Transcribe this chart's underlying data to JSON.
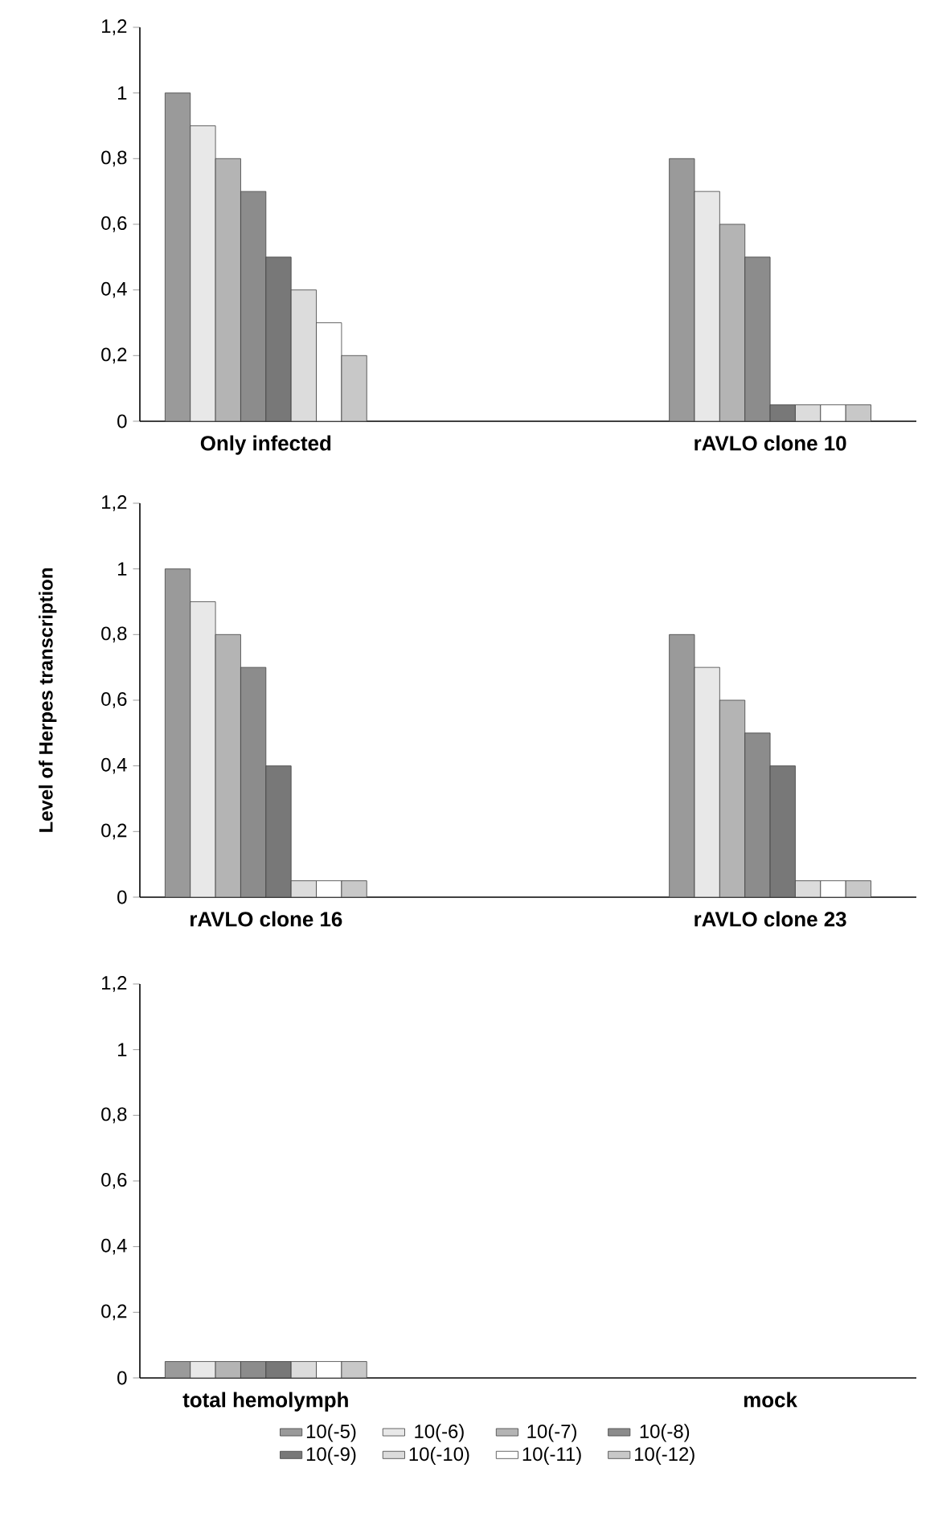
{
  "chart_data": [
    {
      "type": "bar",
      "categories": [
        "Only infected",
        "rAVLO clone 10"
      ],
      "ylim": [
        0,
        1.2
      ],
      "yticks": [
        0,
        {
          "value": 0.2,
          "label": "0,2"
        },
        {
          "value": 0.4,
          "label": "0,4"
        },
        {
          "value": 0.6,
          "label": "0,6"
        },
        {
          "value": 0.8,
          "label": "0,8"
        },
        1,
        {
          "value": 1.2,
          "label": "1,2"
        }
      ],
      "series": [
        {
          "color": "#9a9a9a",
          "values": [
            1,
            0.8
          ]
        },
        {
          "color": "#e8e8e8",
          "values": [
            0.9,
            0.7
          ]
        },
        {
          "color": "#b4b4b4",
          "values": [
            0.8,
            0.6
          ]
        },
        {
          "color": "#8c8c8c",
          "values": [
            0.7,
            0.5
          ]
        },
        {
          "color": "#787878",
          "values": [
            0.5,
            0.05
          ]
        },
        {
          "color": "#dcdcdc",
          "values": [
            0.4,
            0.05
          ]
        },
        {
          "color": "#ffffff",
          "values": [
            0.3,
            0.05
          ]
        },
        {
          "color": "#c8c8c8",
          "values": [
            0.2,
            0.05
          ]
        }
      ]
    },
    {
      "type": "bar",
      "ylabel": "Level of Herpes transcription",
      "categories": [
        "rAVLO clone 16",
        "rAVLO clone 23"
      ],
      "ylim": [
        0,
        1.2
      ],
      "yticks": [
        0,
        {
          "value": 0.2,
          "label": "0,2"
        },
        {
          "value": 0.4,
          "label": "0,4"
        },
        {
          "value": 0.6,
          "label": "0,6"
        },
        {
          "value": 0.8,
          "label": "0,8"
        },
        1,
        {
          "value": 1.2,
          "label": "1,2"
        }
      ],
      "series": [
        {
          "color": "#9a9a9a",
          "values": [
            1,
            0.8
          ]
        },
        {
          "color": "#e8e8e8",
          "values": [
            0.9,
            0.7
          ]
        },
        {
          "color": "#b4b4b4",
          "values": [
            0.8,
            0.6
          ]
        },
        {
          "color": "#8c8c8c",
          "values": [
            0.7,
            0.5
          ]
        },
        {
          "color": "#787878",
          "values": [
            0.4,
            0.4
          ]
        },
        {
          "color": "#dcdcdc",
          "values": [
            0.05,
            0.05
          ]
        },
        {
          "color": "#ffffff",
          "values": [
            0.05,
            0.05
          ]
        },
        {
          "color": "#c8c8c8",
          "values": [
            0.05,
            0.05
          ]
        }
      ]
    },
    {
      "type": "bar",
      "categories": [
        "total hemolymph",
        "mock"
      ],
      "ylim": [
        0,
        1.2
      ],
      "yticks": [
        0,
        {
          "value": 0.2,
          "label": "0,2"
        },
        {
          "value": 0.4,
          "label": "0,4"
        },
        {
          "value": 0.6,
          "label": "0,6"
        },
        {
          "value": 0.8,
          "label": "0,8"
        },
        1,
        {
          "value": 1.2,
          "label": "1,2"
        }
      ],
      "legend": "bottom",
      "series": [
        {
          "name": "10(-5)",
          "color": "#9a9a9a",
          "values": [
            0.05,
            null
          ]
        },
        {
          "name": "10(-6)",
          "color": "#e8e8e8",
          "values": [
            0.05,
            null
          ]
        },
        {
          "name": "10(-7)",
          "color": "#b4b4b4",
          "values": [
            0.05,
            null
          ]
        },
        {
          "name": "10(-8)",
          "color": "#8c8c8c",
          "values": [
            0.05,
            null
          ]
        },
        {
          "name": "10(-9)",
          "color": "#787878",
          "values": [
            0.05,
            null
          ]
        },
        {
          "name": "10(-10)",
          "color": "#dcdcdc",
          "values": [
            0.05,
            null
          ]
        },
        {
          "name": "10(-11)",
          "color": "#ffffff",
          "values": [
            0.05,
            null
          ]
        },
        {
          "name": "10(-12)",
          "color": "#c8c8c8",
          "values": [
            0.05,
            null
          ]
        }
      ]
    }
  ]
}
